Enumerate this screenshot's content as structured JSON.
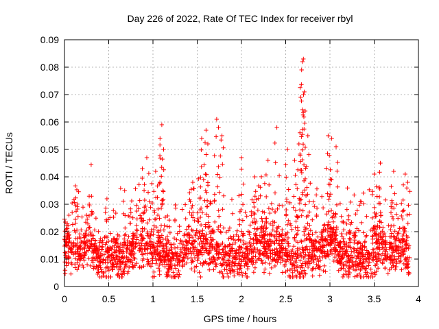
{
  "chart_data": {
    "type": "scatter",
    "title": "Day 226 of 2022, Rate Of TEC Index for receiver rbyl",
    "xlabel": "GPS time / hours",
    "ylabel": "ROTI / TECUs",
    "xlim": [
      0,
      4
    ],
    "ylim": [
      0,
      0.09
    ],
    "grid": true,
    "marker": "+",
    "color": "#ff0000",
    "x_ticks": [
      0,
      0.5,
      1,
      1.5,
      2,
      2.5,
      3,
      3.5,
      4
    ],
    "x_tick_labels": [
      "0",
      "0.5",
      "1",
      "1.5",
      "2",
      "2.5",
      "3",
      "3.5",
      "4"
    ],
    "y_ticks": [
      0,
      0.01,
      0.02,
      0.03,
      0.04,
      0.05,
      0.06,
      0.07,
      0.08,
      0.09
    ],
    "y_tick_labels": [
      "0",
      "0.01",
      "0.02",
      "0.03",
      "0.04",
      "0.05",
      "0.06",
      "0.07",
      "0.08",
      "0.09"
    ],
    "series": [
      {
        "name": "ROTI",
        "x_range": [
          0,
          3.9
        ],
        "n_points": 2400,
        "baseline_typical": [
          0.005,
          0.02
        ],
        "notable_points": [
          {
            "x": 0.05,
            "y": 0.026
          },
          {
            "x": 0.28,
            "y": 0.03
          },
          {
            "x": 0.48,
            "y": 0.032
          },
          {
            "x": 0.68,
            "y": 0.035
          },
          {
            "x": 0.88,
            "y": 0.043
          },
          {
            "x": 0.93,
            "y": 0.047
          },
          {
            "x": 1.03,
            "y": 0.042
          },
          {
            "x": 1.08,
            "y": 0.054
          },
          {
            "x": 1.1,
            "y": 0.059
          },
          {
            "x": 1.12,
            "y": 0.05
          },
          {
            "x": 1.45,
            "y": 0.038
          },
          {
            "x": 1.55,
            "y": 0.054
          },
          {
            "x": 1.6,
            "y": 0.057
          },
          {
            "x": 1.62,
            "y": 0.052
          },
          {
            "x": 1.72,
            "y": 0.061
          },
          {
            "x": 1.74,
            "y": 0.058
          },
          {
            "x": 1.78,
            "y": 0.055
          },
          {
            "x": 2.0,
            "y": 0.047
          },
          {
            "x": 2.15,
            "y": 0.04
          },
          {
            "x": 2.3,
            "y": 0.046
          },
          {
            "x": 2.4,
            "y": 0.058
          },
          {
            "x": 2.52,
            "y": 0.05
          },
          {
            "x": 2.6,
            "y": 0.046
          },
          {
            "x": 2.65,
            "y": 0.052
          },
          {
            "x": 2.67,
            "y": 0.069
          },
          {
            "x": 2.68,
            "y": 0.079
          },
          {
            "x": 2.69,
            "y": 0.082
          },
          {
            "x": 2.7,
            "y": 0.083
          },
          {
            "x": 2.71,
            "y": 0.071
          },
          {
            "x": 2.72,
            "y": 0.064
          },
          {
            "x": 2.75,
            "y": 0.055
          },
          {
            "x": 2.98,
            "y": 0.055
          },
          {
            "x": 3.02,
            "y": 0.054
          },
          {
            "x": 3.07,
            "y": 0.051
          },
          {
            "x": 3.5,
            "y": 0.041
          },
          {
            "x": 3.57,
            "y": 0.045
          },
          {
            "x": 3.72,
            "y": 0.042
          },
          {
            "x": 3.85,
            "y": 0.041
          },
          {
            "x": 3.88,
            "y": 0.038
          }
        ]
      }
    ]
  }
}
